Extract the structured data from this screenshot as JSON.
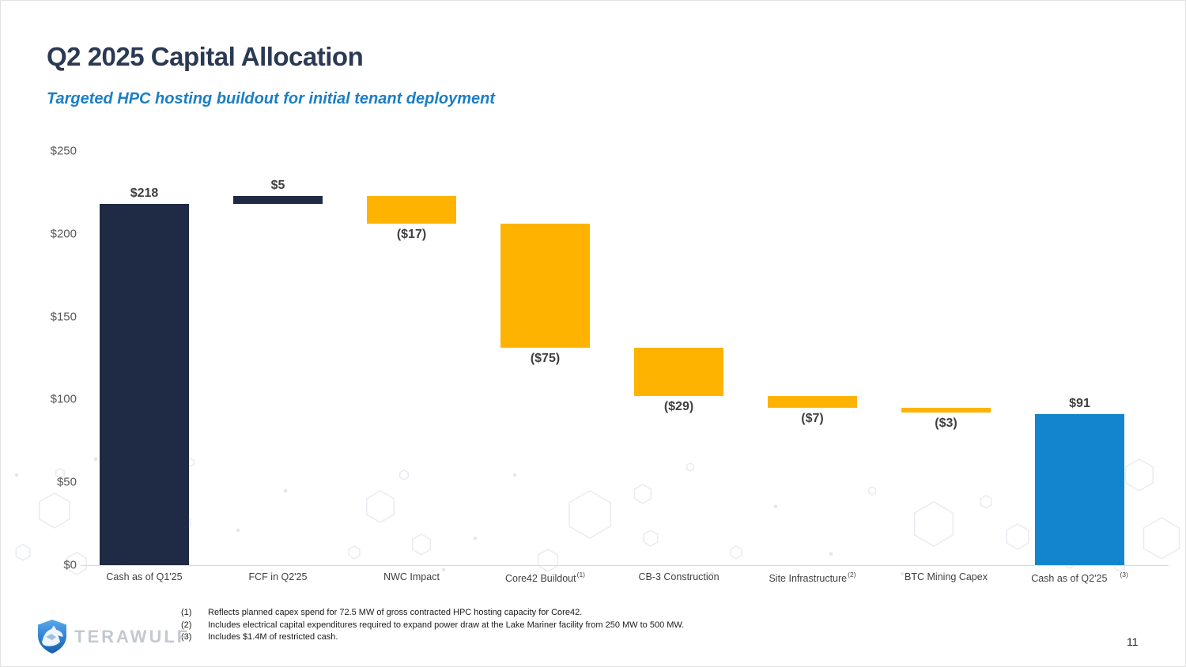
{
  "slide": {
    "title": "Q2 2025 Capital Allocation",
    "subtitle": "Targeted HPC hosting buildout for initial tenant deployment",
    "page_number": "11"
  },
  "logo": {
    "text": "TERAWULF"
  },
  "colors": {
    "navy": "#1F2A44",
    "orange": "#FFB301",
    "blue": "#1385CE",
    "title_navy": "#2A3A52",
    "subtitle_blue": "#1B7EC5",
    "axis_gray": "#5A5A5A",
    "value_label_gray": "#404040",
    "baseline_gray": "#D9D9D9"
  },
  "chart_data": {
    "type": "bar",
    "subtype": "waterfall",
    "title": "Q2 2025 Capital Allocation",
    "unit": "$ millions",
    "ylim": [
      0,
      250
    ],
    "grid": false,
    "legend": false,
    "yticks": [
      {
        "value": 0,
        "label": "$0"
      },
      {
        "value": 50,
        "label": "$50"
      },
      {
        "value": 100,
        "label": "$100"
      },
      {
        "value": 150,
        "label": "$150"
      },
      {
        "value": 200,
        "label": "$200"
      },
      {
        "value": 250,
        "label": "$250"
      }
    ],
    "categories": [
      "Cash as of Q1'25",
      "FCF in Q2'25",
      "NWC Impact",
      "Core42 Buildout",
      "CB-3 Construction",
      "Site Infrastructure",
      "BTC Mining Capex",
      "Cash as of Q2'25"
    ],
    "bars": [
      {
        "category": "Cash as of Q1'25",
        "footnote_marker": "",
        "footnote_marker_offset": false,
        "value": 218,
        "value_display": "$218",
        "start": 0,
        "end": 218,
        "color_key": "navy",
        "value_label_position": "above"
      },
      {
        "category": "FCF in Q2'25",
        "footnote_marker": "",
        "footnote_marker_offset": false,
        "value": 5,
        "value_display": "$5",
        "start": 218,
        "end": 223,
        "color_key": "navy",
        "value_label_position": "above"
      },
      {
        "category": "NWC Impact",
        "footnote_marker": "",
        "footnote_marker_offset": false,
        "value": -17,
        "value_display": "($17)",
        "start": 223,
        "end": 206,
        "color_key": "orange",
        "value_label_position": "below"
      },
      {
        "category": "Core42 Buildout",
        "footnote_marker": "(1)",
        "footnote_marker_offset": false,
        "value": -75,
        "value_display": "($75)",
        "start": 206,
        "end": 131,
        "color_key": "orange",
        "value_label_position": "below"
      },
      {
        "category": "CB-3 Construction",
        "footnote_marker": "",
        "footnote_marker_offset": false,
        "value": -29,
        "value_display": "($29)",
        "start": 131,
        "end": 102,
        "color_key": "orange",
        "value_label_position": "below"
      },
      {
        "category": "Site Infrastructure",
        "footnote_marker": "(2)",
        "footnote_marker_offset": false,
        "value": -7,
        "value_display": "($7)",
        "start": 102,
        "end": 95,
        "color_key": "orange",
        "value_label_position": "below"
      },
      {
        "category": "BTC Mining Capex",
        "footnote_marker": "",
        "footnote_marker_offset": false,
        "value": -3,
        "value_display": "($3)",
        "start": 95,
        "end": 92,
        "color_key": "orange",
        "value_label_position": "below"
      },
      {
        "category": "Cash as of Q2'25",
        "footnote_marker": "(3)",
        "footnote_marker_offset": true,
        "value": 91,
        "value_display": "$91",
        "start": 0,
        "end": 91,
        "color_key": "blue",
        "value_label_position": "above"
      }
    ]
  },
  "footnotes": [
    {
      "marker": "(1)",
      "text": "Reflects planned capex spend for 72.5 MW of gross contracted HPC hosting capacity for Core42."
    },
    {
      "marker": "(2)",
      "text": "Includes electrical capital expenditures required to expand power draw at the Lake Mariner facility from 250 MW to 500 MW."
    },
    {
      "marker": "(3)",
      "text": "Includes $1.4M of restricted cash."
    }
  ]
}
